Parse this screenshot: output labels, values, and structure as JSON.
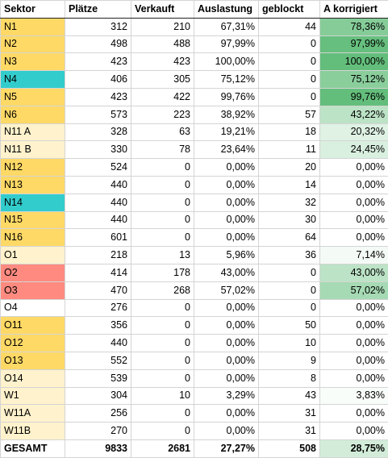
{
  "headers": [
    "Sektor",
    "Plätze",
    "Verkauft",
    "Auslastung",
    "geblockt",
    "A korrigiert"
  ],
  "colors": {
    "orange": "#ffd966",
    "teal": "#33cccc",
    "red": "#ff8a80",
    "beige": "#fff2cc",
    "none": "#ffffff",
    "heat_high": "#63be7b",
    "heat_low": "#ffffff"
  },
  "rows": [
    {
      "sektor": "N1",
      "color": "orange",
      "plaetze": "312",
      "verkauft": "210",
      "auslastung": "67,31%",
      "geblockt": "44",
      "korrigiert": "78,36%",
      "k_value": 78.36
    },
    {
      "sektor": "N2",
      "color": "orange",
      "plaetze": "498",
      "verkauft": "488",
      "auslastung": "97,99%",
      "geblockt": "0",
      "korrigiert": "97,99%",
      "k_value": 97.99
    },
    {
      "sektor": "N3",
      "color": "orange",
      "plaetze": "423",
      "verkauft": "423",
      "auslastung": "100,00%",
      "geblockt": "0",
      "korrigiert": "100,00%",
      "k_value": 100.0
    },
    {
      "sektor": "N4",
      "color": "teal",
      "plaetze": "406",
      "verkauft": "305",
      "auslastung": "75,12%",
      "geblockt": "0",
      "korrigiert": "75,12%",
      "k_value": 75.12
    },
    {
      "sektor": "N5",
      "color": "orange",
      "plaetze": "423",
      "verkauft": "422",
      "auslastung": "99,76%",
      "geblockt": "0",
      "korrigiert": "99,76%",
      "k_value": 99.76
    },
    {
      "sektor": "N6",
      "color": "orange",
      "plaetze": "573",
      "verkauft": "223",
      "auslastung": "38,92%",
      "geblockt": "57",
      "korrigiert": "43,22%",
      "k_value": 43.22
    },
    {
      "sektor": "N11 A",
      "color": "beige",
      "plaetze": "328",
      "verkauft": "63",
      "auslastung": "19,21%",
      "geblockt": "18",
      "korrigiert": "20,32%",
      "k_value": 20.32
    },
    {
      "sektor": "N11 B",
      "color": "beige",
      "plaetze": "330",
      "verkauft": "78",
      "auslastung": "23,64%",
      "geblockt": "11",
      "korrigiert": "24,45%",
      "k_value": 24.45
    },
    {
      "sektor": "N12",
      "color": "orange",
      "plaetze": "524",
      "verkauft": "0",
      "auslastung": "0,00%",
      "geblockt": "20",
      "korrigiert": "0,00%",
      "k_value": 0
    },
    {
      "sektor": "N13",
      "color": "orange",
      "plaetze": "440",
      "verkauft": "0",
      "auslastung": "0,00%",
      "geblockt": "14",
      "korrigiert": "0,00%",
      "k_value": 0
    },
    {
      "sektor": "N14",
      "color": "teal",
      "plaetze": "440",
      "verkauft": "0",
      "auslastung": "0,00%",
      "geblockt": "32",
      "korrigiert": "0,00%",
      "k_value": 0
    },
    {
      "sektor": "N15",
      "color": "orange",
      "plaetze": "440",
      "verkauft": "0",
      "auslastung": "0,00%",
      "geblockt": "30",
      "korrigiert": "0,00%",
      "k_value": 0
    },
    {
      "sektor": "N16",
      "color": "orange",
      "plaetze": "601",
      "verkauft": "0",
      "auslastung": "0,00%",
      "geblockt": "64",
      "korrigiert": "0,00%",
      "k_value": 0
    },
    {
      "sektor": "O1",
      "color": "beige",
      "plaetze": "218",
      "verkauft": "13",
      "auslastung": "5,96%",
      "geblockt": "36",
      "korrigiert": "7,14%",
      "k_value": 7.14
    },
    {
      "sektor": "O2",
      "color": "red",
      "plaetze": "414",
      "verkauft": "178",
      "auslastung": "43,00%",
      "geblockt": "0",
      "korrigiert": "43,00%",
      "k_value": 43.0
    },
    {
      "sektor": "O3",
      "color": "red",
      "plaetze": "470",
      "verkauft": "268",
      "auslastung": "57,02%",
      "geblockt": "0",
      "korrigiert": "57,02%",
      "k_value": 57.02
    },
    {
      "sektor": "O4",
      "color": "none",
      "plaetze": "276",
      "verkauft": "0",
      "auslastung": "0,00%",
      "geblockt": "0",
      "korrigiert": "0,00%",
      "k_value": 0
    },
    {
      "sektor": "O11",
      "color": "orange",
      "plaetze": "356",
      "verkauft": "0",
      "auslastung": "0,00%",
      "geblockt": "50",
      "korrigiert": "0,00%",
      "k_value": 0
    },
    {
      "sektor": "O12",
      "color": "orange",
      "plaetze": "440",
      "verkauft": "0",
      "auslastung": "0,00%",
      "geblockt": "10",
      "korrigiert": "0,00%",
      "k_value": 0
    },
    {
      "sektor": "O13",
      "color": "orange",
      "plaetze": "552",
      "verkauft": "0",
      "auslastung": "0,00%",
      "geblockt": "9",
      "korrigiert": "0,00%",
      "k_value": 0
    },
    {
      "sektor": "O14",
      "color": "beige",
      "plaetze": "539",
      "verkauft": "0",
      "auslastung": "0,00%",
      "geblockt": "8",
      "korrigiert": "0,00%",
      "k_value": 0
    },
    {
      "sektor": "W1",
      "color": "beige",
      "plaetze": "304",
      "verkauft": "10",
      "auslastung": "3,29%",
      "geblockt": "43",
      "korrigiert": "3,83%",
      "k_value": 3.83
    },
    {
      "sektor": "W11A",
      "color": "beige",
      "plaetze": "256",
      "verkauft": "0",
      "auslastung": "0,00%",
      "geblockt": "31",
      "korrigiert": "0,00%",
      "k_value": 0
    },
    {
      "sektor": "W11B",
      "color": "beige",
      "plaetze": "270",
      "verkauft": "0",
      "auslastung": "0,00%",
      "geblockt": "31",
      "korrigiert": "0,00%",
      "k_value": 0
    }
  ],
  "total": {
    "sektor": "GESAMT",
    "plaetze": "9833",
    "verkauft": "2681",
    "auslastung": "27,27%",
    "geblockt": "508",
    "korrigiert": "28,75%",
    "k_value": 28.75
  }
}
